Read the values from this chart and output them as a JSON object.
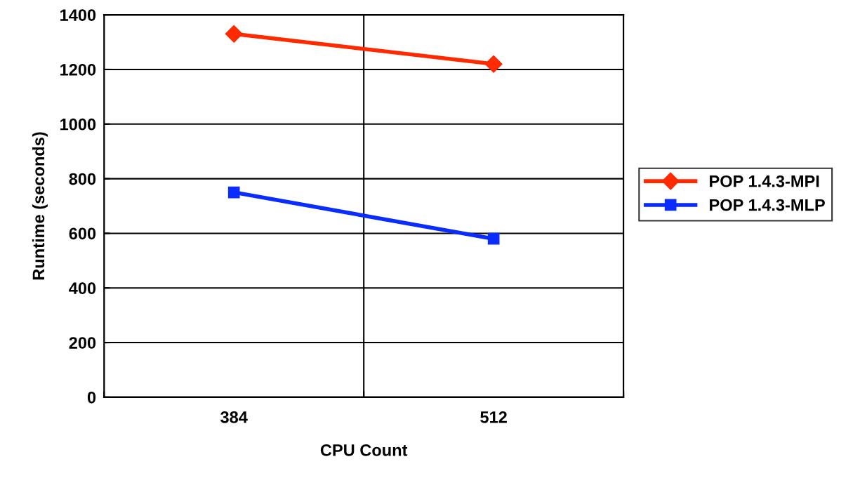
{
  "chart_data": {
    "type": "line",
    "xlabel": "CPU Count",
    "ylabel": "Runtime (seconds)",
    "categories": [
      "384",
      "512"
    ],
    "series": [
      {
        "name": "POP 1.4.3-MPI",
        "color": "#ff2a00",
        "values": [
          1330,
          1220
        ],
        "marker": "diamond"
      },
      {
        "name": "POP 1.4.3-MLP",
        "color": "#0a2cff",
        "values": [
          750,
          580
        ],
        "marker": "square"
      }
    ],
    "ylim": [
      0,
      1400
    ],
    "yticks": [
      0,
      200,
      400,
      600,
      800,
      1000,
      1200,
      1400
    ],
    "grid": true,
    "legend": "right"
  }
}
